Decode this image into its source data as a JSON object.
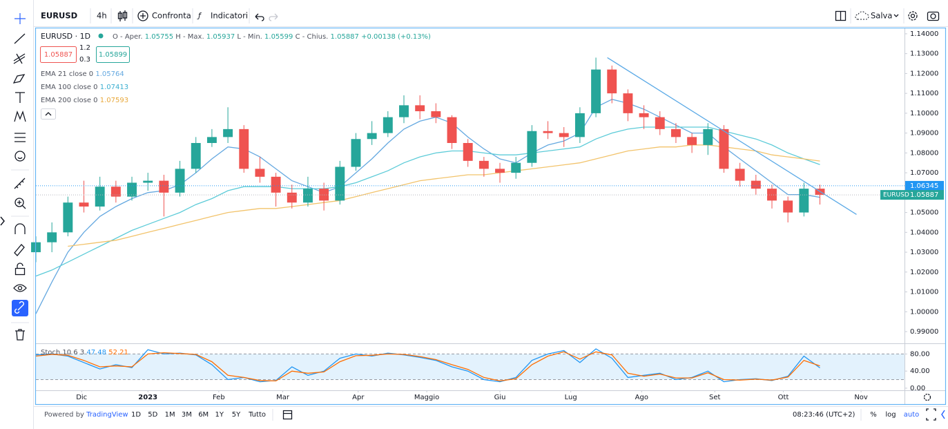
{
  "toolbar": {
    "symbol": "EURUSD",
    "interval": "4h",
    "compare": "Confronta",
    "indicators": "Indicatori",
    "save": "Salva"
  },
  "legend": {
    "open_label": "O - Aper.",
    "open": 1.05755,
    "high_label": "H - Max.",
    "high": 1.05937,
    "low_label": "L - Min.",
    "low": 1.05599,
    "close_label": "C - Chius.",
    "close": 1.05887,
    "change": "+0.00138 (+0.13%)",
    "sell": 1.05887,
    "spread_top": 1.2,
    "spread": 0.3,
    "buy": 1.05899
  },
  "chart_data": [
    {
      "type": "candlestick",
      "title": "EURUSD · 1D",
      "up_color": "#26a69a",
      "down_color": "#ef5350",
      "x": [
        0,
        7,
        14,
        21,
        28,
        35,
        42,
        49,
        56,
        63,
        70,
        77,
        84,
        91,
        98,
        105,
        112,
        119,
        126,
        133,
        140,
        147,
        154,
        161,
        168,
        175,
        182,
        189,
        196,
        203,
        210,
        217,
        224,
        231,
        238,
        245,
        252,
        259,
        266,
        273,
        280,
        287,
        294,
        301,
        308,
        315,
        322,
        329,
        336,
        343
      ],
      "open": [
        1.03,
        1.035,
        1.04,
        1.055,
        1.053,
        1.063,
        1.058,
        1.065,
        1.066,
        1.06,
        1.072,
        1.085,
        1.088,
        1.092,
        1.072,
        1.068,
        1.06,
        1.055,
        1.062,
        1.056,
        1.073,
        1.087,
        1.09,
        1.098,
        1.104,
        1.101,
        1.098,
        1.085,
        1.076,
        1.072,
        1.07,
        1.075,
        1.091,
        1.09,
        1.088,
        1.1,
        1.122,
        1.11,
        1.1,
        1.098,
        1.092,
        1.088,
        1.084,
        1.092,
        1.072,
        1.066,
        1.062,
        1.056,
        1.05,
        1.062
      ],
      "high": [
        1.038,
        1.045,
        1.058,
        1.066,
        1.068,
        1.066,
        1.068,
        1.07,
        1.069,
        1.076,
        1.088,
        1.092,
        1.103,
        1.094,
        1.078,
        1.07,
        1.064,
        1.068,
        1.065,
        1.076,
        1.09,
        1.096,
        1.101,
        1.109,
        1.109,
        1.105,
        1.099,
        1.087,
        1.078,
        1.075,
        1.078,
        1.094,
        1.096,
        1.093,
        1.103,
        1.128,
        1.124,
        1.112,
        1.104,
        1.101,
        1.095,
        1.09,
        1.095,
        1.094,
        1.075,
        1.069,
        1.064,
        1.058,
        1.065,
        1.064
      ],
      "low": [
        1.025,
        1.03,
        1.038,
        1.05,
        1.051,
        1.055,
        1.056,
        1.061,
        1.048,
        1.058,
        1.07,
        1.083,
        1.085,
        1.07,
        1.065,
        1.053,
        1.052,
        1.053,
        1.051,
        1.054,
        1.071,
        1.084,
        1.088,
        1.095,
        1.097,
        1.095,
        1.082,
        1.073,
        1.068,
        1.065,
        1.067,
        1.073,
        1.087,
        1.083,
        1.085,
        1.098,
        1.105,
        1.096,
        1.092,
        1.089,
        1.085,
        1.08,
        1.079,
        1.07,
        1.063,
        1.059,
        1.052,
        1.045,
        1.048,
        1.054
      ],
      "close": [
        1.035,
        1.04,
        1.055,
        1.053,
        1.063,
        1.058,
        1.065,
        1.066,
        1.06,
        1.072,
        1.085,
        1.088,
        1.092,
        1.072,
        1.068,
        1.06,
        1.055,
        1.062,
        1.056,
        1.073,
        1.087,
        1.09,
        1.098,
        1.104,
        1.101,
        1.098,
        1.085,
        1.076,
        1.072,
        1.07,
        1.075,
        1.091,
        1.09,
        1.088,
        1.1,
        1.122,
        1.11,
        1.1,
        1.098,
        1.092,
        1.088,
        1.084,
        1.092,
        1.072,
        1.066,
        1.062,
        1.056,
        1.05,
        1.062,
        1.05887
      ],
      "series": [
        {
          "name": "EMA 21 close 0",
          "color": "#64a8e0",
          "values": [
            0.999,
            1.015,
            1.03,
            1.04,
            1.048,
            1.053,
            1.057,
            1.06,
            1.061,
            1.064,
            1.07,
            1.077,
            1.083,
            1.082,
            1.078,
            1.072,
            1.066,
            1.063,
            1.06,
            1.063,
            1.07,
            1.077,
            1.085,
            1.092,
            1.096,
            1.098,
            1.095,
            1.088,
            1.082,
            1.077,
            1.075,
            1.08,
            1.084,
            1.086,
            1.09,
            1.103,
            1.107,
            1.105,
            1.102,
            1.098,
            1.094,
            1.09,
            1.09,
            1.083,
            1.077,
            1.071,
            1.065,
            1.059,
            1.059,
            1.05764
          ]
        },
        {
          "name": "EMA 100 close 0",
          "color": "#5ccbd8",
          "values": [
            1.018,
            1.021,
            1.025,
            1.029,
            1.033,
            1.037,
            1.041,
            1.044,
            1.047,
            1.05,
            1.054,
            1.057,
            1.061,
            1.063,
            1.063,
            1.063,
            1.062,
            1.062,
            1.062,
            1.063,
            1.065,
            1.068,
            1.071,
            1.075,
            1.078,
            1.08,
            1.081,
            1.081,
            1.08,
            1.079,
            1.079,
            1.08,
            1.081,
            1.082,
            1.083,
            1.087,
            1.09,
            1.092,
            1.093,
            1.093,
            1.093,
            1.093,
            1.093,
            1.091,
            1.089,
            1.087,
            1.084,
            1.08,
            1.077,
            1.07413
          ]
        },
        {
          "name": "EMA 200 close 0",
          "color": "#f2c36b",
          "values": [
            null,
            null,
            1.033,
            1.034,
            1.035,
            1.036,
            1.038,
            1.04,
            1.042,
            1.044,
            1.046,
            1.048,
            1.05,
            1.051,
            1.052,
            1.052,
            1.053,
            1.054,
            1.055,
            1.056,
            1.058,
            1.06,
            1.062,
            1.064,
            1.066,
            1.067,
            1.068,
            1.069,
            1.069,
            1.07,
            1.071,
            1.072,
            1.073,
            1.074,
            1.075,
            1.077,
            1.079,
            1.081,
            1.082,
            1.083,
            1.083,
            1.084,
            1.084,
            1.083,
            1.082,
            1.081,
            1.079,
            1.078,
            1.077,
            1.07593
          ]
        }
      ],
      "trendline": {
        "x": [
          250,
          359
        ],
        "values": [
          1.128,
          1.049
        ],
        "color": "#5aa9e6"
      },
      "price_line": {
        "value": 1.06345,
        "color": "#2196f3"
      },
      "last_price_tag": {
        "symbol": "EURUSD",
        "color": "#26a69a"
      },
      "xlim": [
        0,
        380
      ],
      "xticks": [
        {
          "value": 20,
          "label": "Dic"
        },
        {
          "value": 49,
          "label": "2023"
        },
        {
          "value": 80,
          "label": "Feb"
        },
        {
          "value": 108,
          "label": "Mar"
        },
        {
          "value": 141,
          "label": "Apr"
        },
        {
          "value": 171,
          "label": "Maggio"
        },
        {
          "value": 203,
          "label": "Giu"
        },
        {
          "value": 234,
          "label": "Lug"
        },
        {
          "value": 265,
          "label": "Ago"
        },
        {
          "value": 297,
          "label": "Set"
        },
        {
          "value": 327,
          "label": "Ott"
        },
        {
          "value": 361,
          "label": "Nov"
        }
      ],
      "ylim": [
        0.9841,
        1.1431
      ],
      "yticks": [
        {
          "value": 1.14,
          "label": "1.14000"
        },
        {
          "value": 1.13,
          "label": "1.13000"
        },
        {
          "value": 1.12,
          "label": "1.12000"
        },
        {
          "value": 1.11,
          "label": "1.11000"
        },
        {
          "value": 1.1,
          "label": "1.10000"
        },
        {
          "value": 1.09,
          "label": "1.09000"
        },
        {
          "value": 1.08,
          "label": "1.08000"
        },
        {
          "value": 1.07,
          "label": "1.07000"
        },
        {
          "value": 1.06,
          "label": "1.06000"
        },
        {
          "value": 1.05,
          "label": "1.05000"
        },
        {
          "value": 1.04,
          "label": "1.04000"
        },
        {
          "value": 1.03,
          "label": "1.03000"
        },
        {
          "value": 1.02,
          "label": "1.02000"
        },
        {
          "value": 1.01,
          "label": "1.01000"
        },
        {
          "value": 1.0,
          "label": "1.00000"
        },
        {
          "value": 0.99,
          "label": "0.99000"
        }
      ],
      "grid": false
    },
    {
      "type": "line",
      "title": "Stoch 10 6 3",
      "x": [
        0,
        7,
        14,
        21,
        28,
        35,
        42,
        49,
        56,
        63,
        70,
        77,
        84,
        91,
        98,
        105,
        112,
        119,
        126,
        133,
        140,
        147,
        154,
        161,
        168,
        175,
        182,
        189,
        196,
        203,
        210,
        217,
        224,
        231,
        238,
        245,
        252,
        259,
        266,
        273,
        280,
        287,
        294,
        301,
        308,
        315,
        322,
        329,
        336,
        343
      ],
      "series": [
        {
          "color": "#2196f3",
          "values": [
            78,
            80,
            75,
            60,
            45,
            55,
            48,
            90,
            80,
            82,
            78,
            55,
            20,
            25,
            15,
            18,
            50,
            30,
            40,
            70,
            80,
            75,
            82,
            78,
            72,
            65,
            50,
            40,
            20,
            15,
            25,
            65,
            80,
            88,
            60,
            92,
            70,
            25,
            30,
            35,
            20,
            25,
            40,
            15,
            20,
            22,
            18,
            28,
            75,
            47.48
          ]
        },
        {
          "color": "#ff6d00",
          "values": [
            75,
            79,
            77,
            65,
            50,
            52,
            50,
            80,
            83,
            81,
            79,
            62,
            30,
            25,
            18,
            17,
            40,
            35,
            38,
            62,
            76,
            77,
            80,
            79,
            74,
            67,
            55,
            44,
            25,
            17,
            22,
            55,
            75,
            85,
            68,
            85,
            78,
            35,
            28,
            33,
            24,
            24,
            36,
            20,
            19,
            21,
            19,
            26,
            65,
            52.21
          ]
        }
      ],
      "band": [
        20,
        80
      ],
      "band_color": "#e3f2fd",
      "xlim": [
        0,
        380
      ],
      "ylim": [
        -5,
        103.3
      ],
      "yticks": [
        {
          "value": 80,
          "label": "80.00"
        },
        {
          "value": 40,
          "label": "40.00"
        },
        {
          "value": 0,
          "label": "0.00"
        }
      ],
      "grid": false
    }
  ],
  "bottom_bar": {
    "powered": "Powered by",
    "brand": "TradingView",
    "ranges": [
      "1D",
      "5D",
      "1M",
      "3M",
      "6M",
      "1Y",
      "5Y",
      "Tutto"
    ],
    "clock": "08:23:46 (UTC+2)",
    "percent": "%",
    "log": "log",
    "auto": "auto"
  }
}
